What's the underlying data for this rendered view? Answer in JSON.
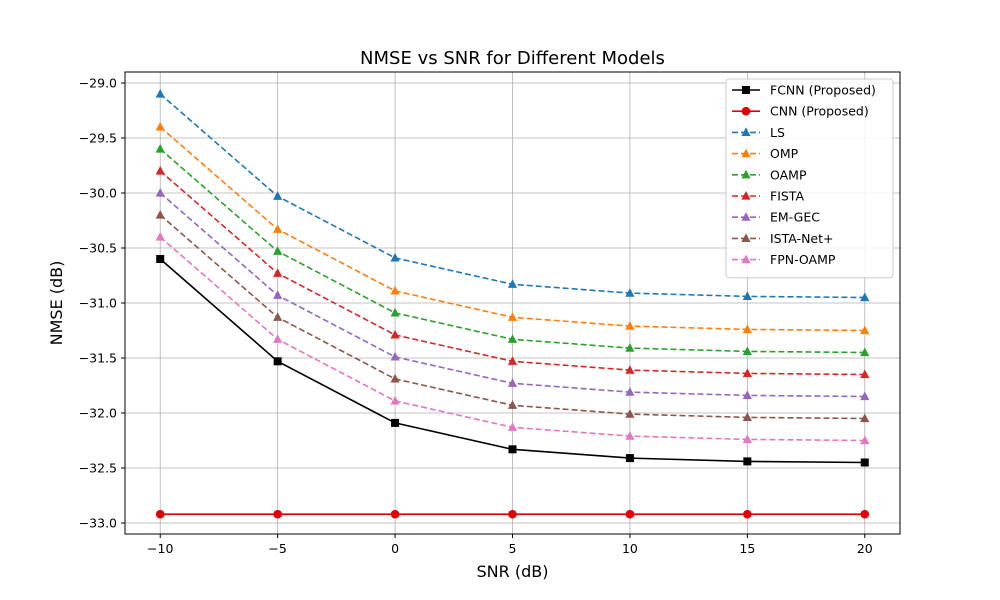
{
  "chart_data": {
    "type": "line",
    "title": "NMSE vs SNR for Different Models",
    "xlabel": "SNR (dB)",
    "ylabel": "NMSE (dB)",
    "x": [
      -10,
      -5,
      0,
      5,
      10,
      15,
      20
    ],
    "xlim": [
      -11.5,
      21.5
    ],
    "ylim": [
      -33.1,
      -28.9
    ],
    "xticks": [
      -10,
      -5,
      0,
      5,
      10,
      15,
      20
    ],
    "xtick_labels": [
      "−10",
      "−5",
      "0",
      "5",
      "10",
      "15",
      "20"
    ],
    "yticks": [
      -29.0,
      -29.5,
      -30.0,
      -30.5,
      -31.0,
      -31.5,
      -32.0,
      -32.5,
      -33.0
    ],
    "ytick_labels": [
      "−29.0",
      "−29.5",
      "−30.0",
      "−30.5",
      "−31.0",
      "−31.5",
      "−32.0",
      "−32.5",
      "−33.0"
    ],
    "grid": true,
    "legend_position": "top-right",
    "series": [
      {
        "name": "FCNN (Proposed)",
        "color": "#000000",
        "dash": "solid",
        "marker": "square",
        "values": [
          -30.6,
          -31.53,
          -32.09,
          -32.33,
          -32.41,
          -32.44,
          -32.45
        ]
      },
      {
        "name": "CNN (Proposed)",
        "color": "#e00000",
        "dash": "solid",
        "marker": "circle",
        "values": [
          -32.92,
          -32.92,
          -32.92,
          -32.92,
          -32.92,
          -32.92,
          -32.92
        ]
      },
      {
        "name": "LS",
        "color": "#1f77b4",
        "dash": "dashed",
        "marker": "triangle",
        "values": [
          -29.1,
          -30.03,
          -30.59,
          -30.83,
          -30.91,
          -30.94,
          -30.95
        ]
      },
      {
        "name": "OMP",
        "color": "#ff7f0e",
        "dash": "dashed",
        "marker": "triangle",
        "values": [
          -29.4,
          -30.33,
          -30.89,
          -31.13,
          -31.21,
          -31.24,
          -31.25
        ]
      },
      {
        "name": "OAMP",
        "color": "#2ca02c",
        "dash": "dashed",
        "marker": "triangle",
        "values": [
          -29.6,
          -30.53,
          -31.09,
          -31.33,
          -31.41,
          -31.44,
          -31.45
        ]
      },
      {
        "name": "FISTA",
        "color": "#d62728",
        "dash": "dashed",
        "marker": "triangle",
        "values": [
          -29.8,
          -30.73,
          -31.29,
          -31.53,
          -31.61,
          -31.64,
          -31.65
        ]
      },
      {
        "name": "EM-GEC",
        "color": "#9467bd",
        "dash": "dashed",
        "marker": "triangle",
        "values": [
          -30.0,
          -30.93,
          -31.49,
          -31.73,
          -31.81,
          -31.84,
          -31.85
        ]
      },
      {
        "name": "ISTA-Net+",
        "color": "#8c564b",
        "dash": "dashed",
        "marker": "triangle",
        "values": [
          -30.2,
          -31.13,
          -31.69,
          -31.93,
          -32.01,
          -32.04,
          -32.05
        ]
      },
      {
        "name": "FPN-OAMP",
        "color": "#e377c2",
        "dash": "dashed",
        "marker": "triangle",
        "values": [
          -30.4,
          -31.33,
          -31.89,
          -32.13,
          -32.21,
          -32.24,
          -32.25
        ]
      }
    ]
  }
}
